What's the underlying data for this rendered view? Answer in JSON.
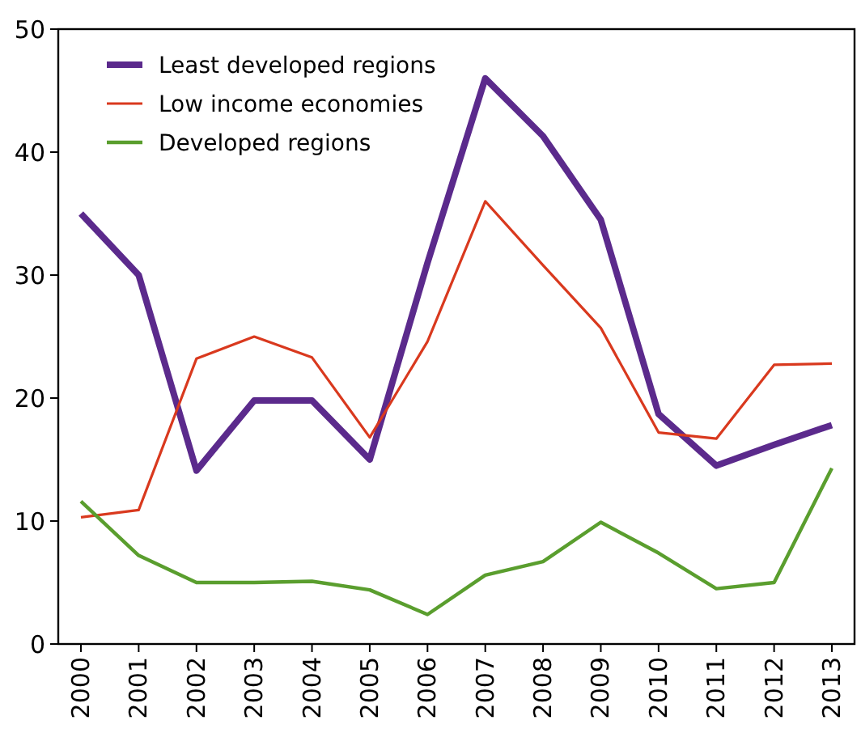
{
  "chart_data": {
    "type": "line",
    "categories": [
      "2000",
      "2001",
      "2002",
      "2003",
      "2004",
      "2005",
      "2006",
      "2007",
      "2008",
      "2009",
      "2010",
      "2011",
      "2012",
      "2013"
    ],
    "series": [
      {
        "name": "Least developed regions",
        "color": "#5b2a8c",
        "values": [
          35.0,
          30.0,
          14.1,
          19.8,
          19.8,
          15.0,
          31.0,
          46.0,
          41.3,
          34.5,
          18.7,
          14.5,
          16.2,
          17.8
        ]
      },
      {
        "name": "Low income economies",
        "color": "#d9391e",
        "values": [
          10.3,
          10.9,
          23.2,
          25.0,
          23.3,
          16.8,
          24.6,
          36.0,
          30.8,
          25.7,
          17.2,
          16.7,
          22.7,
          22.8
        ]
      },
      {
        "name": "Developed regions",
        "color": "#5a9e2e",
        "values": [
          11.6,
          7.2,
          5.0,
          5.0,
          5.1,
          4.4,
          2.4,
          5.6,
          6.7,
          9.9,
          7.4,
          4.5,
          5.0,
          14.3
        ]
      }
    ],
    "ylim": [
      0,
      50
    ],
    "yticks": [
      0,
      10,
      20,
      30,
      40,
      50
    ],
    "grid": false,
    "legend": "top left",
    "marker": "none",
    "line_style": "solid"
  }
}
